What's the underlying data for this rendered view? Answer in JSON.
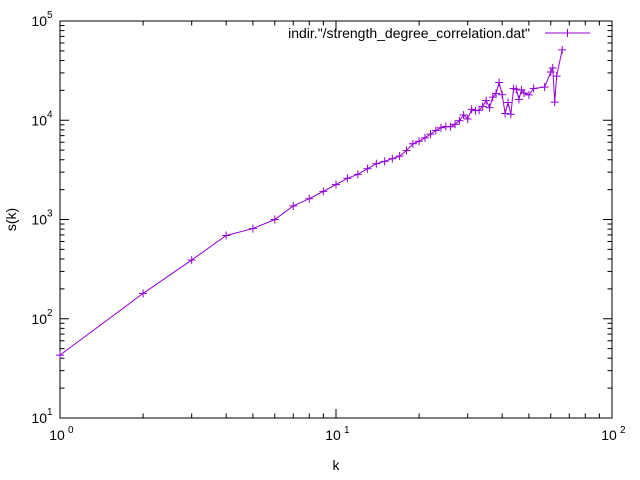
{
  "chart_data": {
    "type": "line",
    "xscale": "log",
    "yscale": "log",
    "xlim": [
      1,
      100
    ],
    "ylim": [
      10,
      100000
    ],
    "xlabel": "k",
    "ylabel": "s(k)",
    "grid": false,
    "legend_position": "top-right",
    "x_ticks": [
      {
        "base": "10",
        "exp": "0",
        "value": 1
      },
      {
        "base": "10",
        "exp": "1",
        "value": 10
      },
      {
        "base": "10",
        "exp": "2",
        "value": 100
      }
    ],
    "y_ticks": [
      {
        "base": "10",
        "exp": "1",
        "value": 10
      },
      {
        "base": "10",
        "exp": "2",
        "value": 100
      },
      {
        "base": "10",
        "exp": "3",
        "value": 1000
      },
      {
        "base": "10",
        "exp": "4",
        "value": 10000
      },
      {
        "base": "10",
        "exp": "5",
        "value": 100000
      }
    ],
    "series": [
      {
        "name": "indir.\"/strength_degree_correlation.dat\"",
        "color": "#9400d3",
        "marker": "plus",
        "x": [
          1,
          2,
          3,
          4,
          5,
          6,
          7,
          8,
          9,
          10,
          11,
          12,
          13,
          14,
          15,
          16,
          17,
          18,
          19,
          20,
          21,
          22,
          23,
          24,
          25,
          26,
          27,
          28,
          29,
          30,
          31,
          32,
          33,
          34,
          35,
          36,
          37,
          38,
          39,
          40,
          41,
          42,
          43,
          44,
          45,
          46,
          47,
          48,
          50,
          52,
          57,
          60,
          61,
          62,
          63,
          66
        ],
        "y": [
          43,
          180,
          390,
          690,
          810,
          1000,
          1370,
          1620,
          1920,
          2250,
          2600,
          2850,
          3250,
          3650,
          3850,
          4100,
          4350,
          4950,
          5800,
          6150,
          6650,
          7250,
          7900,
          8400,
          8650,
          8600,
          9100,
          9900,
          11300,
          10300,
          12900,
          12500,
          12600,
          13800,
          15800,
          13400,
          17100,
          18600,
          24000,
          18100,
          11700,
          15100,
          11500,
          20900,
          20500,
          16200,
          20200,
          18800,
          18000,
          20900,
          21600,
          30600,
          33700,
          15200,
          27800,
          51200
        ]
      }
    ]
  }
}
